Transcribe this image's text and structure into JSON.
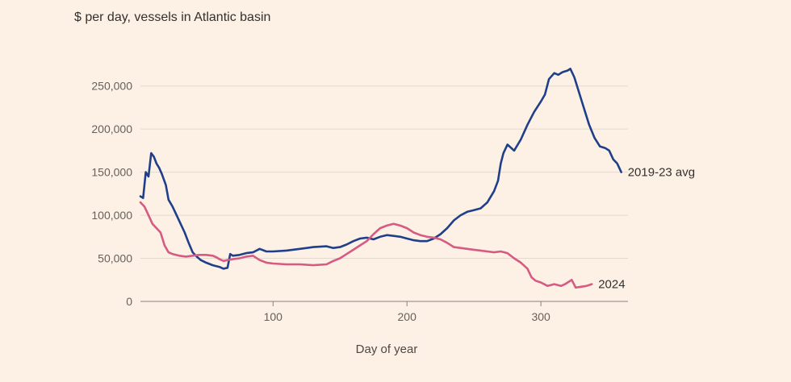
{
  "chart_data": {
    "type": "line",
    "title": "$ per day, vessels in Atlantic basin",
    "xlabel": "Day of year",
    "ylabel": "",
    "xlim": [
      1,
      365
    ],
    "ylim": [
      0,
      275000
    ],
    "x_ticks": [
      100,
      200,
      300
    ],
    "x_tick_labels": [
      "100",
      "200",
      "300"
    ],
    "y_ticks": [
      0,
      50000,
      100000,
      150000,
      200000,
      250000
    ],
    "y_tick_labels": [
      "0",
      "50,000",
      "100,000",
      "150,000",
      "200,000",
      "250,000"
    ],
    "grid": true,
    "legend": "inline labels at line ends",
    "series": [
      {
        "name": "2019-23 avg",
        "color": "#1f3f8a",
        "x": [
          1,
          3,
          5,
          7,
          9,
          11,
          13,
          15,
          17,
          20,
          22,
          25,
          28,
          31,
          34,
          37,
          40,
          43,
          46,
          50,
          55,
          60,
          63,
          66,
          68,
          70,
          75,
          80,
          85,
          90,
          95,
          100,
          110,
          120,
          130,
          140,
          145,
          150,
          155,
          160,
          165,
          170,
          175,
          180,
          185,
          190,
          195,
          200,
          205,
          210,
          215,
          220,
          225,
          230,
          235,
          240,
          245,
          250,
          255,
          260,
          265,
          268,
          270,
          272,
          275,
          280,
          285,
          290,
          295,
          300,
          303,
          306,
          310,
          313,
          316,
          320,
          322,
          325,
          328,
          330,
          333,
          336,
          340,
          344,
          348,
          351,
          354,
          357,
          360
        ],
        "y": [
          122000,
          120000,
          150000,
          145000,
          172000,
          168000,
          160000,
          155000,
          148000,
          135000,
          118000,
          110000,
          100000,
          90000,
          80000,
          68000,
          57000,
          52000,
          48000,
          45000,
          42000,
          40000,
          38000,
          39000,
          55000,
          53000,
          54000,
          56000,
          57000,
          61000,
          58000,
          58000,
          59000,
          61000,
          63000,
          64000,
          62000,
          63000,
          66000,
          70000,
          73000,
          74000,
          72000,
          75000,
          77000,
          76000,
          75000,
          73000,
          71000,
          70000,
          70000,
          73000,
          78000,
          85000,
          94000,
          100000,
          104000,
          106000,
          108000,
          115000,
          128000,
          140000,
          160000,
          172000,
          182000,
          175000,
          188000,
          205000,
          220000,
          232000,
          240000,
          258000,
          265000,
          263000,
          266000,
          268000,
          270000,
          260000,
          245000,
          235000,
          220000,
          205000,
          190000,
          180000,
          178000,
          175000,
          165000,
          160000,
          150000
        ]
      },
      {
        "name": "2024",
        "color": "#d65a81",
        "x": [
          1,
          4,
          7,
          10,
          13,
          16,
          19,
          22,
          25,
          30,
          35,
          40,
          45,
          50,
          55,
          58,
          60,
          63,
          66,
          70,
          75,
          80,
          85,
          90,
          95,
          100,
          110,
          120,
          130,
          140,
          145,
          150,
          155,
          160,
          165,
          170,
          175,
          180,
          185,
          190,
          195,
          200,
          205,
          210,
          215,
          220,
          225,
          230,
          235,
          240,
          245,
          250,
          255,
          260,
          265,
          270,
          275,
          280,
          285,
          290,
          293,
          296,
          300,
          305,
          310,
          315,
          318,
          320,
          323,
          326,
          330,
          334,
          338
        ],
        "y": [
          115000,
          110000,
          100000,
          90000,
          85000,
          80000,
          65000,
          57000,
          55000,
          53000,
          52000,
          53000,
          54000,
          54000,
          53000,
          51000,
          49000,
          47000,
          48000,
          49000,
          50000,
          52000,
          53000,
          48000,
          45000,
          44000,
          43000,
          43000,
          42000,
          43000,
          47000,
          50000,
          55000,
          60000,
          65000,
          70000,
          78000,
          85000,
          88000,
          90000,
          88000,
          85000,
          80000,
          77000,
          75000,
          74000,
          72000,
          68000,
          63000,
          62000,
          61000,
          60000,
          59000,
          58000,
          57000,
          58000,
          56000,
          50000,
          45000,
          38000,
          28000,
          24000,
          22000,
          18000,
          20000,
          18000,
          20000,
          22000,
          25000,
          16000,
          17000,
          18000,
          20000
        ]
      }
    ]
  }
}
